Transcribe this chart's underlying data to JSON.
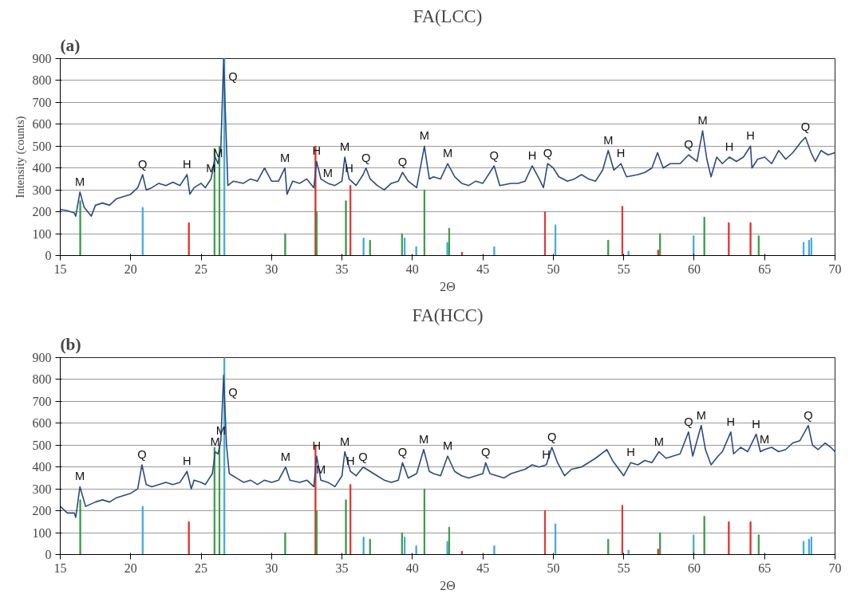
{
  "chart_data": [
    {
      "type": "line",
      "title": "FA(LCC)",
      "xlabel": "2Θ",
      "ylabel": "Intensity (counts)",
      "xlim": [
        15,
        70
      ],
      "xticks": [
        15,
        20,
        25,
        30,
        35,
        40,
        45,
        50,
        55,
        60,
        65,
        70
      ],
      "ylim": [
        0,
        900
      ],
      "yticks": [
        0,
        100,
        200,
        300,
        400,
        500,
        600,
        700,
        800,
        900
      ],
      "grid": "y",
      "series": [
        {
          "type": "bar",
          "color": "#3a9a48",
          "x": [
            16.42,
            25.95,
            26.3,
            30.97,
            33.2,
            35.28,
            36.99,
            39.26,
            40.85,
            42.61,
            53.9,
            57.58,
            60.72,
            64.58
          ],
          "values": [
            250,
            490,
            500,
            100,
            200,
            250,
            70,
            100,
            300,
            125,
            70,
            100,
            175,
            90
          ]
        },
        {
          "type": "bar",
          "color": "#3fa9dc",
          "x": [
            20.85,
            26.65,
            36.53,
            39.45,
            40.27,
            42.48,
            45.81,
            50.15,
            55.34,
            59.96,
            67.77,
            68.15,
            68.32
          ],
          "values": [
            220,
            900,
            80,
            80,
            40,
            60,
            40,
            140,
            20,
            90,
            60,
            70,
            80
          ]
        },
        {
          "type": "bar",
          "color": "#e03030",
          "x": [
            24.13,
            33.12,
            35.6,
            43.52,
            49.41,
            54.9,
            57.44,
            62.46,
            64.0
          ],
          "values": [
            150,
            500,
            320,
            15,
            200,
            225,
            25,
            150,
            150
          ]
        },
        {
          "color": "#2a4a7f",
          "x": [
            15,
            15.5,
            16,
            16.1,
            16.4,
            16.7,
            17.2,
            17.5,
            18,
            18.5,
            19,
            19.5,
            20,
            20.5,
            20.85,
            21.1,
            21.5,
            22,
            22.5,
            23,
            23.5,
            24,
            24.2,
            24.5,
            25,
            25.3,
            25.7,
            26,
            26.2,
            26.4,
            26.6,
            26.75,
            26.9,
            27.3,
            28,
            28.5,
            29,
            29.5,
            30,
            30.5,
            30.95,
            31.1,
            31.5,
            32,
            32.5,
            33,
            33.2,
            33.5,
            34,
            34.5,
            35,
            35.2,
            35.5,
            36,
            36.5,
            36.7,
            37,
            37.5,
            38,
            38.5,
            39,
            39.3,
            39.7,
            40.3,
            40.85,
            41.2,
            41.5,
            42,
            42.5,
            43,
            43.5,
            44,
            44.5,
            45,
            45.8,
            46.2,
            47,
            47.5,
            48,
            48.5,
            49,
            49.3,
            49.6,
            50,
            50.4,
            51,
            51.5,
            52,
            52.5,
            53,
            53.5,
            53.9,
            54.3,
            54.8,
            55.2,
            56,
            56.5,
            57,
            57.4,
            57.8,
            58.3,
            59,
            59.6,
            60.2,
            60.6,
            60.9,
            61.2,
            61.6,
            62,
            62.5,
            63,
            63.5,
            64,
            64.1,
            64.5,
            65,
            65.5,
            66,
            66.5,
            67,
            67.6,
            67.9,
            68.3,
            68.6,
            69,
            69.5,
            70
          ],
          "values": [
            210,
            205,
            195,
            180,
            290,
            220,
            180,
            230,
            240,
            230,
            260,
            270,
            280,
            310,
            370,
            300,
            310,
            330,
            320,
            335,
            320,
            370,
            280,
            310,
            330,
            310,
            350,
            450,
            420,
            490,
            900,
            600,
            320,
            340,
            330,
            350,
            340,
            400,
            340,
            340,
            400,
            280,
            340,
            330,
            350,
            310,
            430,
            350,
            330,
            320,
            340,
            450,
            350,
            320,
            370,
            400,
            350,
            320,
            300,
            330,
            340,
            380,
            340,
            310,
            500,
            350,
            360,
            350,
            420,
            360,
            330,
            320,
            340,
            330,
            410,
            320,
            330,
            330,
            340,
            410,
            350,
            310,
            420,
            400,
            360,
            340,
            350,
            370,
            350,
            340,
            390,
            480,
            390,
            420,
            360,
            370,
            380,
            400,
            470,
            400,
            420,
            420,
            460,
            430,
            570,
            440,
            360,
            450,
            420,
            450,
            430,
            450,
            500,
            400,
            440,
            450,
            420,
            480,
            440,
            470,
            520,
            540,
            470,
            430,
            480,
            460,
            470
          ]
        }
      ],
      "annotations": [
        "(a)",
        {
          "text": "M",
          "x": 16.4,
          "y": 290
        },
        {
          "text": "Q",
          "x": 20.85,
          "y": 370
        },
        {
          "text": "H",
          "x": 24,
          "y": 370
        },
        {
          "text": "M",
          "x": 25.7,
          "y": 350
        },
        {
          "text": "M",
          "x": 26.2,
          "y": 420
        },
        {
          "text": "Q",
          "x": 26.6,
          "y": 900
        },
        {
          "text": "M",
          "x": 30.95,
          "y": 400
        },
        {
          "text": "H",
          "x": 33.2,
          "y": 430
        },
        {
          "text": "M",
          "x": 34,
          "y": 330
        },
        {
          "text": "M",
          "x": 35.2,
          "y": 450
        },
        {
          "text": "H",
          "x": 35.5,
          "y": 350
        },
        {
          "text": "Q",
          "x": 36.7,
          "y": 400
        },
        {
          "text": "Q",
          "x": 39.3,
          "y": 380
        },
        {
          "text": "M",
          "x": 40.85,
          "y": 500
        },
        {
          "text": "M",
          "x": 42.5,
          "y": 420
        },
        {
          "text": "Q",
          "x": 45.8,
          "y": 410
        },
        {
          "text": "H",
          "x": 48.5,
          "y": 410
        },
        {
          "text": "Q",
          "x": 49.6,
          "y": 420
        },
        {
          "text": "M",
          "x": 53.9,
          "y": 480
        },
        {
          "text": "H",
          "x": 54.8,
          "y": 420
        },
        {
          "text": "Q",
          "x": 59.6,
          "y": 460
        },
        {
          "text": "M",
          "x": 60.6,
          "y": 570
        },
        {
          "text": "H",
          "x": 62.5,
          "y": 450
        },
        {
          "text": "H",
          "x": 64,
          "y": 500
        },
        {
          "text": "Q",
          "x": 67.9,
          "y": 540
        }
      ]
    },
    {
      "type": "line",
      "title": "FA(HCC)",
      "xlabel": "2Θ",
      "xlim": [
        15,
        70
      ],
      "xticks": [
        15,
        20,
        25,
        30,
        35,
        40,
        45,
        50,
        55,
        60,
        65,
        70
      ],
      "ylim": [
        0,
        900
      ],
      "yticks": [
        0,
        100,
        200,
        300,
        400,
        500,
        600,
        700,
        800,
        900
      ],
      "grid": "y",
      "series": [
        {
          "type": "bar",
          "color": "#3a9a48",
          "x": [
            16.42,
            25.95,
            26.3,
            30.97,
            33.2,
            35.28,
            36.99,
            39.26,
            40.85,
            42.61,
            53.9,
            57.58,
            60.72,
            64.58
          ],
          "values": [
            250,
            490,
            500,
            100,
            200,
            250,
            70,
            100,
            300,
            125,
            70,
            100,
            175,
            90
          ]
        },
        {
          "type": "bar",
          "color": "#3fa9dc",
          "x": [
            20.85,
            26.65,
            36.53,
            39.45,
            40.27,
            42.48,
            45.81,
            50.15,
            55.34,
            59.96,
            67.77,
            68.15,
            68.32
          ],
          "values": [
            220,
            900,
            80,
            80,
            40,
            60,
            40,
            140,
            20,
            90,
            60,
            70,
            80
          ]
        },
        {
          "type": "bar",
          "color": "#e03030",
          "x": [
            24.13,
            33.12,
            35.6,
            43.52,
            49.41,
            54.9,
            57.44,
            62.46,
            64.0
          ],
          "values": [
            150,
            500,
            320,
            15,
            200,
            225,
            25,
            150,
            150
          ]
        },
        {
          "color": "#2a4a7f",
          "x": [
            15,
            15.5,
            16,
            16.1,
            16.4,
            16.8,
            17.5,
            18,
            18.5,
            19,
            19.5,
            20,
            20.5,
            20.8,
            21.1,
            21.5,
            22,
            22.5,
            23,
            23.5,
            24,
            24.3,
            24.5,
            25,
            25.3,
            25.8,
            26,
            26.2,
            26.4,
            26.6,
            26.8,
            27,
            27.5,
            28,
            28.5,
            29,
            29.5,
            30,
            30.5,
            31,
            31.3,
            32,
            32.5,
            33,
            33.2,
            33.5,
            34,
            34.5,
            35,
            35.2,
            35.6,
            36,
            36.5,
            37,
            37.5,
            38,
            38.5,
            39,
            39.3,
            39.7,
            40.3,
            40.8,
            41.2,
            41.5,
            42,
            42.5,
            43,
            43.5,
            44,
            44.5,
            45,
            45.2,
            45.5,
            46,
            46.5,
            47,
            47.5,
            48,
            48.5,
            49,
            49.5,
            49.9,
            50.3,
            50.8,
            51.3,
            52,
            52.5,
            53,
            53.8,
            54.2,
            55,
            55.5,
            56,
            56.5,
            57,
            57.5,
            58,
            58.5,
            59,
            59.6,
            59.9,
            60.5,
            60.8,
            61.2,
            61.7,
            62,
            62.6,
            62.8,
            63.3,
            63.8,
            64.4,
            64.7,
            65,
            65.5,
            66,
            66.5,
            67,
            67.5,
            68.1,
            68.4,
            68.8,
            69.3,
            69.7,
            70
          ],
          "values": [
            220,
            190,
            190,
            170,
            310,
            220,
            240,
            250,
            240,
            260,
            270,
            280,
            300,
            410,
            320,
            310,
            320,
            330,
            320,
            330,
            380,
            300,
            340,
            330,
            320,
            370,
            470,
            460,
            520,
            820,
            500,
            370,
            350,
            330,
            340,
            320,
            340,
            330,
            340,
            400,
            340,
            330,
            340,
            310,
            450,
            340,
            330,
            310,
            360,
            470,
            380,
            360,
            400,
            380,
            360,
            340,
            330,
            340,
            420,
            350,
            370,
            480,
            380,
            370,
            360,
            450,
            380,
            360,
            350,
            360,
            370,
            420,
            370,
            360,
            350,
            370,
            380,
            390,
            410,
            400,
            410,
            490,
            420,
            360,
            390,
            400,
            420,
            440,
            480,
            430,
            360,
            420,
            410,
            430,
            420,
            470,
            440,
            450,
            460,
            560,
            450,
            590,
            480,
            410,
            450,
            470,
            560,
            460,
            490,
            470,
            550,
            470,
            480,
            490,
            470,
            480,
            510,
            520,
            590,
            500,
            480,
            510,
            490,
            470
          ]
        }
      ],
      "annotations": [
        "(b)",
        {
          "text": "M",
          "x": 16.4,
          "y": 310
        },
        {
          "text": "Q",
          "x": 20.8,
          "y": 410
        },
        {
          "text": "H",
          "x": 24,
          "y": 380
        },
        {
          "text": "M",
          "x": 26,
          "y": 470
        },
        {
          "text": "M",
          "x": 26.4,
          "y": 520
        },
        {
          "text": "Q",
          "x": 26.6,
          "y": 820
        },
        {
          "text": "M",
          "x": 31,
          "y": 400
        },
        {
          "text": "H",
          "x": 33.2,
          "y": 450
        },
        {
          "text": "M",
          "x": 33.5,
          "y": 340
        },
        {
          "text": "M",
          "x": 35.2,
          "y": 470
        },
        {
          "text": "H",
          "x": 35.6,
          "y": 380
        },
        {
          "text": "Q",
          "x": 36.5,
          "y": 400
        },
        {
          "text": "Q",
          "x": 39.3,
          "y": 420
        },
        {
          "text": "M",
          "x": 40.8,
          "y": 480
        },
        {
          "text": "M",
          "x": 42.5,
          "y": 450
        },
        {
          "text": "Q",
          "x": 45.2,
          "y": 420
        },
        {
          "text": "H",
          "x": 49.5,
          "y": 410
        },
        {
          "text": "Q",
          "x": 49.9,
          "y": 490
        },
        {
          "text": "H",
          "x": 55.5,
          "y": 420
        },
        {
          "text": "M",
          "x": 57.5,
          "y": 470
        },
        {
          "text": "Q",
          "x": 59.6,
          "y": 560
        },
        {
          "text": "M",
          "x": 60.5,
          "y": 590
        },
        {
          "text": "H",
          "x": 62.6,
          "y": 560
        },
        {
          "text": "H",
          "x": 64.4,
          "y": 550
        },
        {
          "text": "M",
          "x": 65,
          "y": 480
        },
        {
          "text": "Q",
          "x": 68.1,
          "y": 590
        }
      ]
    }
  ]
}
